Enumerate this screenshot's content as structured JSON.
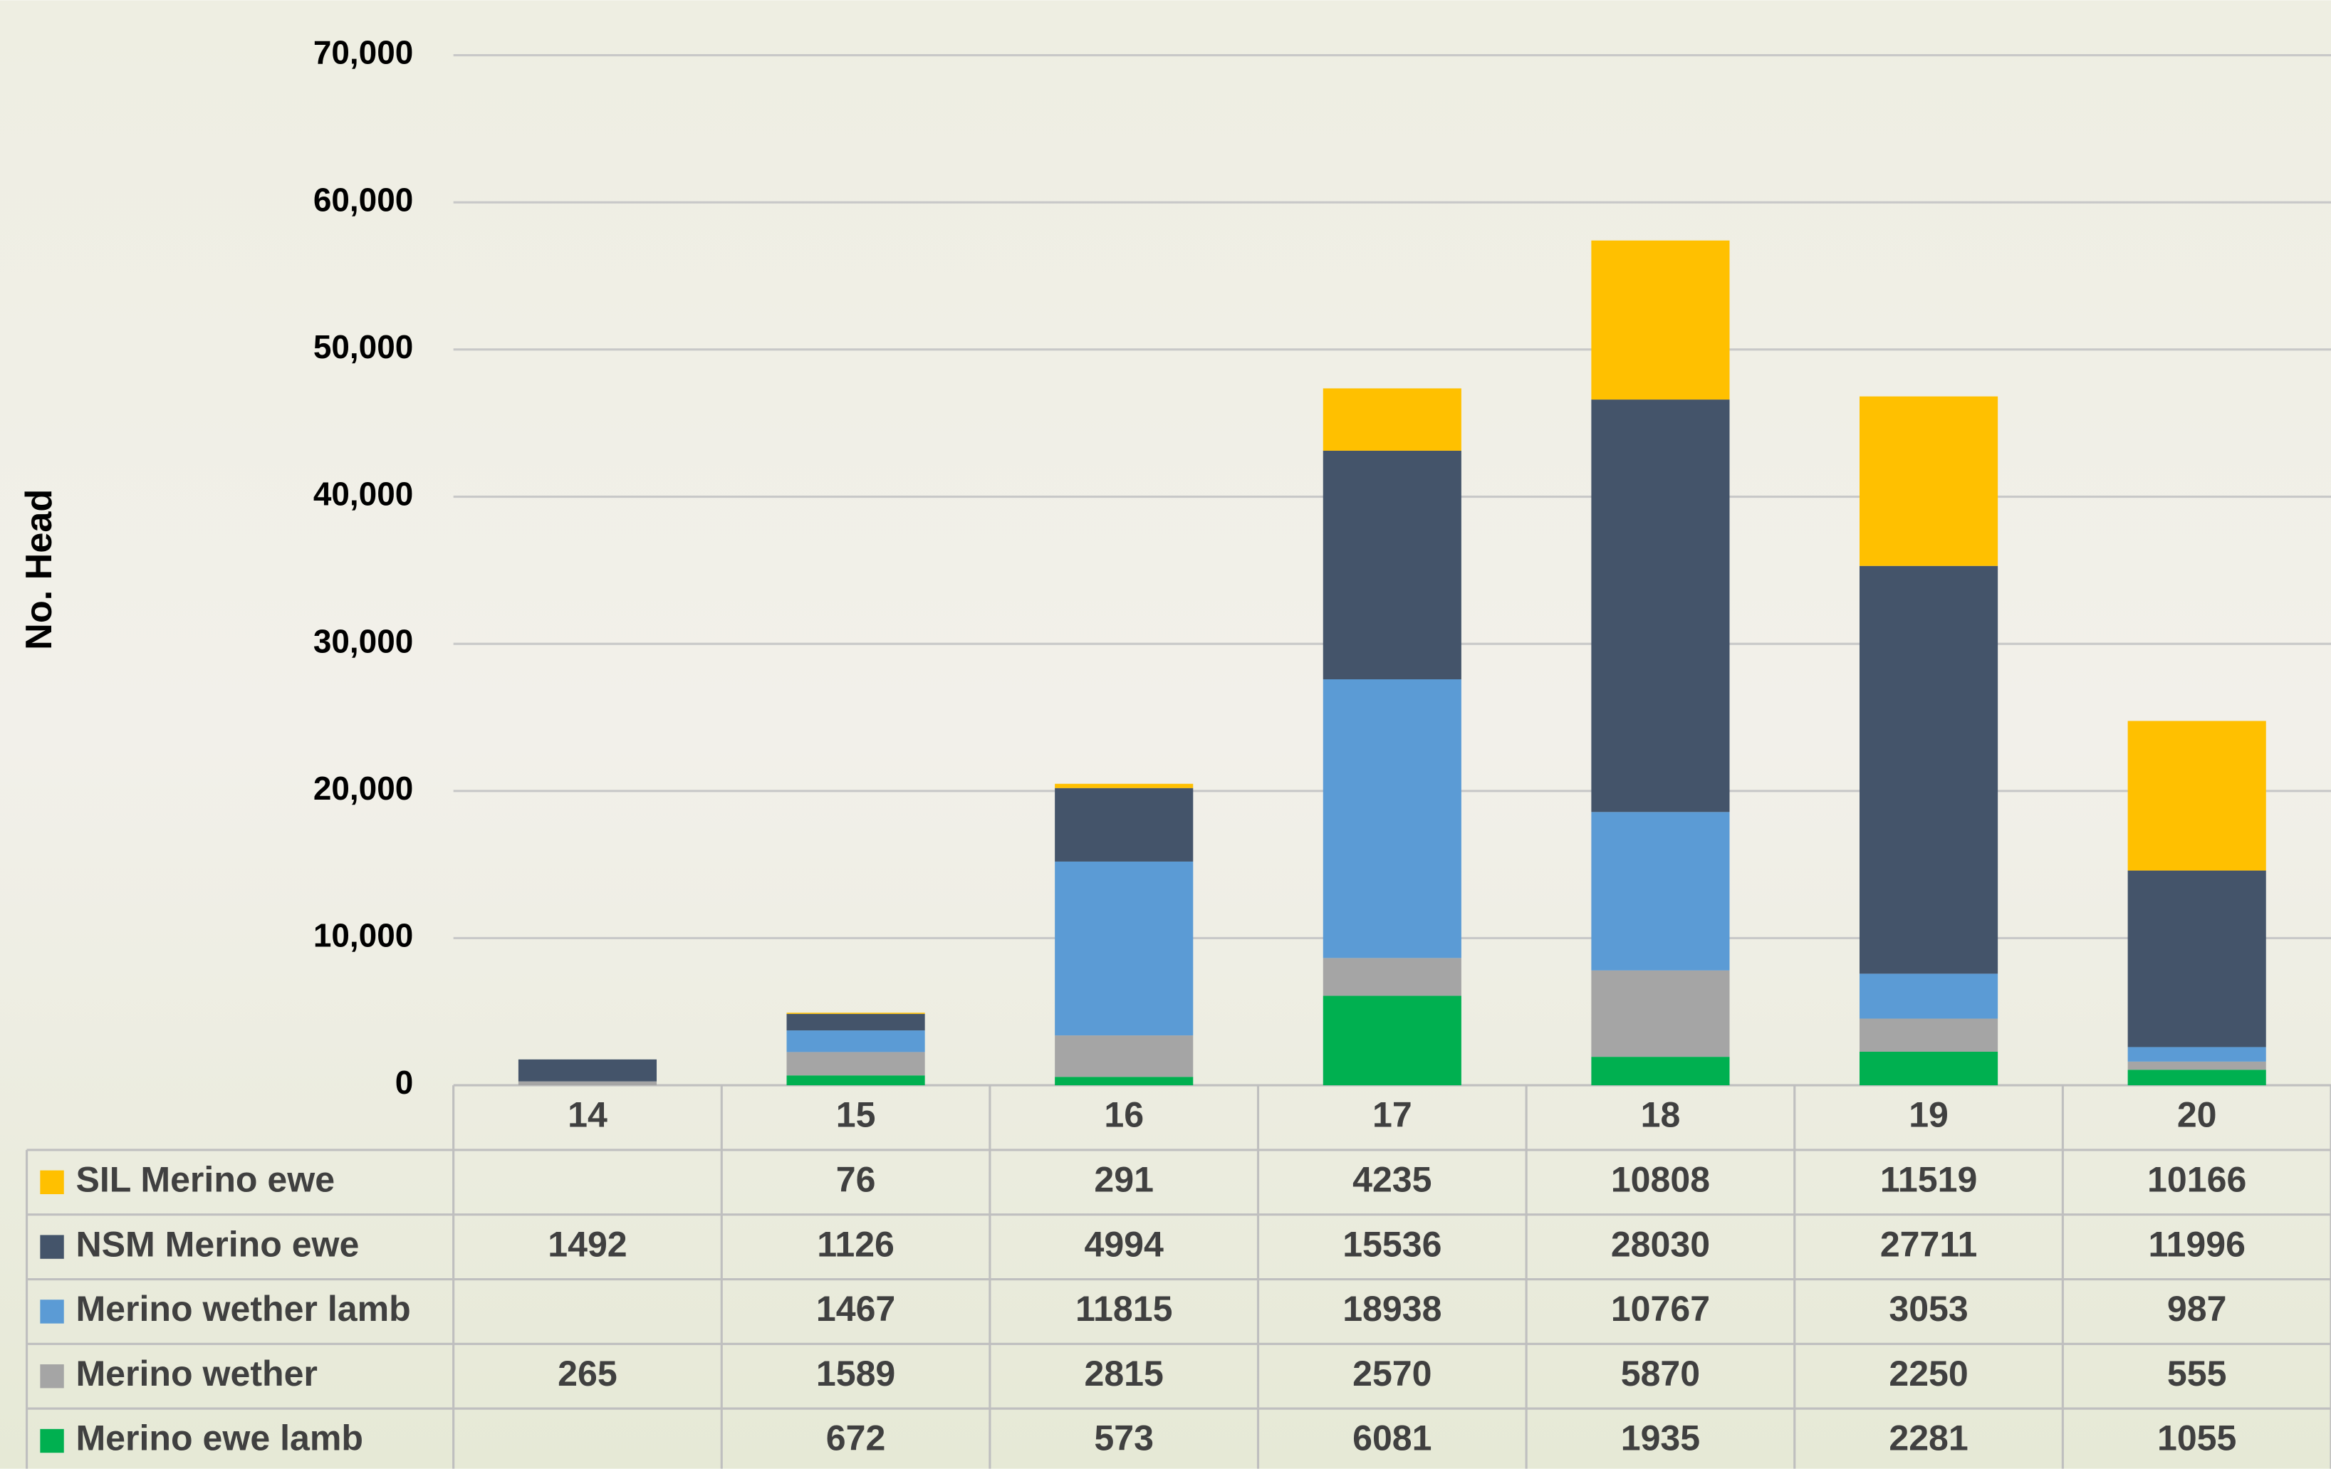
{
  "chart_data": {
    "type": "bar",
    "stacked": true,
    "y_label": "No. Head",
    "categories": [
      "14",
      "15",
      "16",
      "17",
      "18",
      "19",
      "20"
    ],
    "series": [
      {
        "name": "SIL Merino ewe",
        "color": "#ffc000",
        "values": [
          null,
          76,
          291,
          4235,
          10808,
          11519,
          10166
        ]
      },
      {
        "name": "NSM Merino ewe",
        "color": "#44546a",
        "values": [
          1492,
          1126,
          4994,
          15536,
          28030,
          27711,
          11996
        ]
      },
      {
        "name": "Merino wether lamb",
        "color": "#5b9bd5",
        "values": [
          null,
          1467,
          11815,
          18938,
          10767,
          3053,
          987
        ]
      },
      {
        "name": "Merino wether",
        "color": "#a5a5a5",
        "values": [
          265,
          1589,
          2815,
          2570,
          5870,
          2250,
          555
        ]
      },
      {
        "name": "Merino ewe lamb",
        "color": "#00b050",
        "values": [
          null,
          672,
          573,
          6081,
          1935,
          2281,
          1055
        ]
      }
    ],
    "ylim": [
      0,
      70000
    ],
    "yticks": [
      0,
      {
        "value": 10000,
        "label": "10,000"
      },
      {
        "value": 20000,
        "label": "20,000"
      },
      {
        "value": 30000,
        "label": "30,000"
      },
      {
        "value": 40000,
        "label": "40,000"
      },
      {
        "value": 50000,
        "label": "50,000"
      },
      {
        "value": 60000,
        "label": "60,000"
      },
      {
        "value": 70000,
        "label": "70,000"
      }
    ],
    "grid": true
  }
}
